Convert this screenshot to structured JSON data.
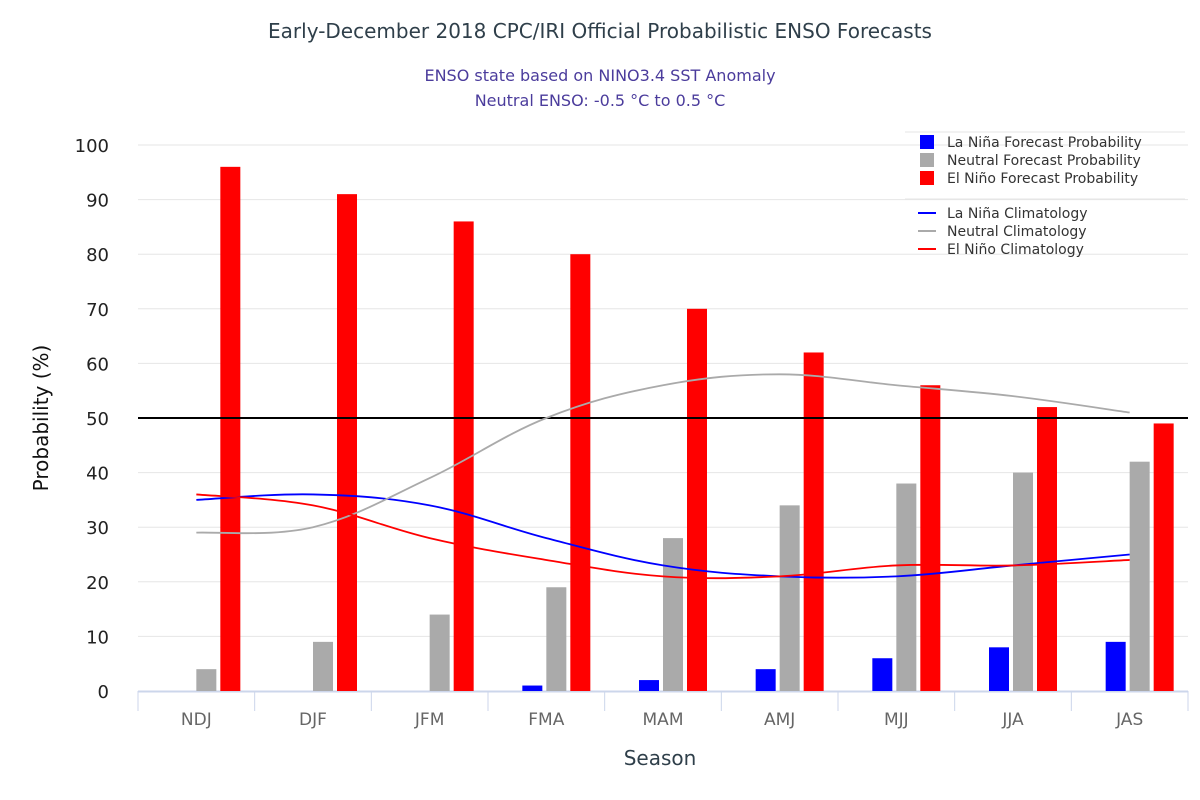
{
  "chart_data": {
    "type": "bar",
    "title": "Early-December 2018 CPC/IRI Official Probabilistic ENSO Forecasts",
    "subtitle": [
      "ENSO state based on NINO3.4 SST Anomaly",
      "Neutral ENSO: -0.5 °C to 0.5 °C"
    ],
    "xlabel": "Season",
    "ylabel": "Probability (%)",
    "ylim": [
      0,
      100
    ],
    "yticks": [
      0,
      10,
      20,
      30,
      40,
      50,
      60,
      70,
      80,
      90,
      100
    ],
    "reference_line": 50,
    "grid": true,
    "legend_position": "top-right",
    "categories": [
      "NDJ",
      "DJF",
      "JFM",
      "FMA",
      "MAM",
      "AMJ",
      "MJJ",
      "JJA",
      "JAS"
    ],
    "series": [
      {
        "name": "La Niña Forecast Probability",
        "kind": "bar",
        "color": "#0000ff",
        "values": [
          0,
          0,
          0,
          1,
          2,
          4,
          6,
          8,
          9
        ]
      },
      {
        "name": "Neutral Forecast Probability",
        "kind": "bar",
        "color": "#aaaaaa",
        "values": [
          4,
          9,
          14,
          19,
          28,
          34,
          38,
          40,
          42
        ]
      },
      {
        "name": "El Niño Forecast Probability",
        "kind": "bar",
        "color": "#ff0000",
        "values": [
          96,
          91,
          86,
          80,
          70,
          62,
          56,
          52,
          49
        ]
      },
      {
        "name": "La Niña Climatology",
        "kind": "line",
        "color": "#0000ff",
        "values": [
          35,
          36,
          34,
          28,
          23,
          21,
          21,
          23,
          25
        ]
      },
      {
        "name": "Neutral Climatology",
        "kind": "line",
        "color": "#aaaaaa",
        "values": [
          29,
          30,
          39,
          50,
          56,
          58,
          56,
          54,
          51
        ]
      },
      {
        "name": "El Niño Climatology",
        "kind": "line",
        "color": "#ff0000",
        "values": [
          36,
          34,
          28,
          24,
          21,
          21,
          23,
          23,
          24
        ]
      }
    ]
  }
}
